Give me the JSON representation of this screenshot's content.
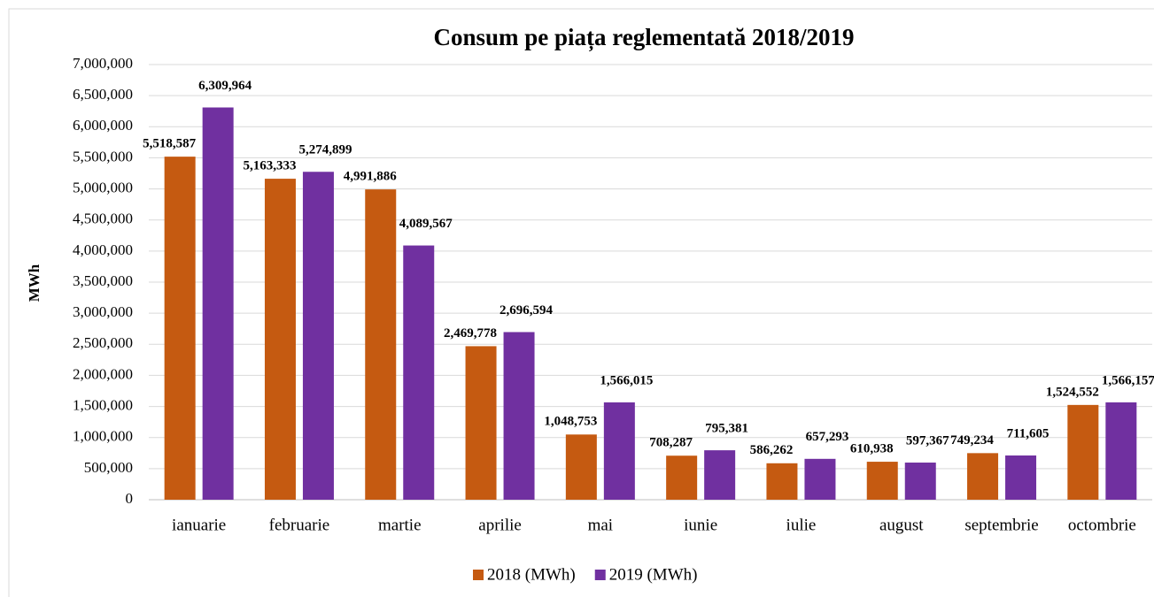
{
  "chart_data": {
    "type": "bar",
    "title": "Consum pe piața reglementată 2018/2019",
    "y_label": "MWh",
    "categories": [
      "ianuarie",
      "februarie",
      "martie",
      "aprilie",
      "mai",
      "iunie",
      "iulie",
      "august",
      "septembrie",
      "octombrie"
    ],
    "series": [
      {
        "name": "2018 (MWh)",
        "color": "#c55a11",
        "values": [
          5518587,
          5163333,
          4991886,
          2469778,
          1048753,
          708287,
          586262,
          610938,
          749234,
          1524552
        ],
        "value_labels": [
          "5,518,587",
          "5,163,333",
          "4,991,886",
          "2,469,778",
          "1,048,753",
          "708,287",
          "586,262",
          "610,938",
          "749,234",
          "1,524,552"
        ]
      },
      {
        "name": "2019 (MWh)",
        "color": "#7030a0",
        "values": [
          6309964,
          5274899,
          4089567,
          2696594,
          1566015,
          795381,
          657293,
          597367,
          711605,
          1566157
        ],
        "value_labels": [
          "6,309,964",
          "5,274,899",
          "4,089,567",
          "2,696,594",
          "1,566,015",
          "795,381",
          "657,293",
          "597,367",
          "711,605",
          "1,566,157"
        ]
      }
    ],
    "ylim": [
      0,
      7000000
    ],
    "yticks": [
      0,
      {
        "value": 500000,
        "label": "500,000"
      },
      {
        "value": 1000000,
        "label": "1,000,000"
      },
      {
        "value": 1500000,
        "label": "1,500,000"
      },
      {
        "value": 2000000,
        "label": "2,000,000"
      },
      {
        "value": 2500000,
        "label": "2,500,000"
      },
      {
        "value": 3000000,
        "label": "3,000,000"
      },
      {
        "value": 3500000,
        "label": "3,500,000"
      },
      {
        "value": 4000000,
        "label": "4,000,000"
      },
      {
        "value": 4500000,
        "label": "4,500,000"
      },
      {
        "value": 5000000,
        "label": "5,000,000"
      },
      {
        "value": 5500000,
        "label": "5,500,000"
      },
      {
        "value": 6000000,
        "label": "6,000,000"
      },
      {
        "value": 6500000,
        "label": "6,500,000"
      },
      {
        "value": 7000000,
        "label": "7,000,000"
      }
    ],
    "grid": true,
    "legend": "bottom"
  }
}
